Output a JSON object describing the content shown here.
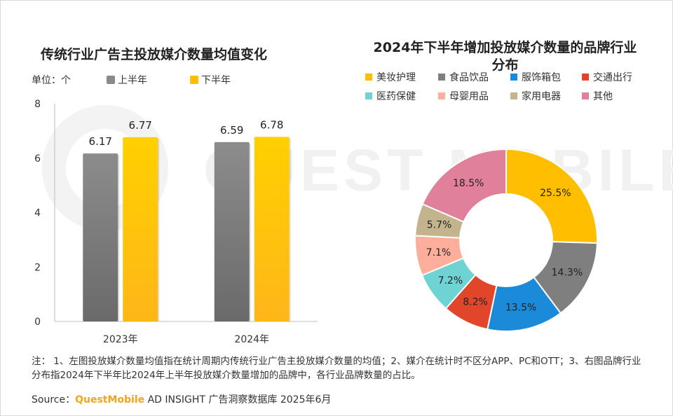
{
  "source_line": {
    "prefix": "Source：",
    "brand": "QuestMobile",
    "suffix": " AD INSIGHT 广告洞察数据库 2025年6月"
  },
  "note": "注： 1、左图投放媒介数量均值指在统计周期内传统行业广告主投放媒介数量的均值；2、媒介在统计时不区分APP、PC和OTT；3、右图品牌行业分布指2024年下半年比2024年上半年投放媒介数量增加的品牌中，各行业品牌数量的占比。",
  "watermark": "QUEST MOBILE",
  "chart_data": [
    {
      "type": "bar",
      "title": "传统行业广告主投放媒介数量均值变化",
      "unit": "单位：个",
      "categories": [
        "2023年",
        "2024年"
      ],
      "series": [
        {
          "name": "上半年",
          "values": [
            6.17,
            6.59
          ],
          "color": "#8a8a8a"
        },
        {
          "name": "下半年",
          "values": [
            6.77,
            6.78
          ],
          "color": "#ffbf00"
        }
      ],
      "ylim": [
        0,
        8
      ],
      "yticks": [
        "0",
        "2",
        "4",
        "6",
        "8"
      ],
      "grid": false,
      "legend_position": "top"
    },
    {
      "type": "pie",
      "title": "2024年下半年增加投放媒介数量的品牌行业分布",
      "donut": true,
      "legend_position": "top",
      "slices": [
        {
          "label": "美妆护理",
          "value": 25.5,
          "text": "25.5%",
          "color": "#ffbf00"
        },
        {
          "label": "食品饮品",
          "value": 14.3,
          "text": "14.3%",
          "color": "#7f7f7f"
        },
        {
          "label": "服饰箱包",
          "value": 13.5,
          "text": "13.5%",
          "color": "#1b8ad8"
        },
        {
          "label": "交通出行",
          "value": 8.2,
          "text": "8.2%",
          "color": "#e1452a"
        },
        {
          "label": "医药保健",
          "value": 7.2,
          "text": "7.2%",
          "color": "#6fd3d3"
        },
        {
          "label": "母婴用品",
          "value": 7.1,
          "text": "7.1%",
          "color": "#ffae9c"
        },
        {
          "label": "家用电器",
          "value": 5.7,
          "text": "5.7%",
          "color": "#c4b48e"
        },
        {
          "label": "其他",
          "value": 18.5,
          "text": "18.5%",
          "color": "#e0809a"
        }
      ]
    }
  ]
}
